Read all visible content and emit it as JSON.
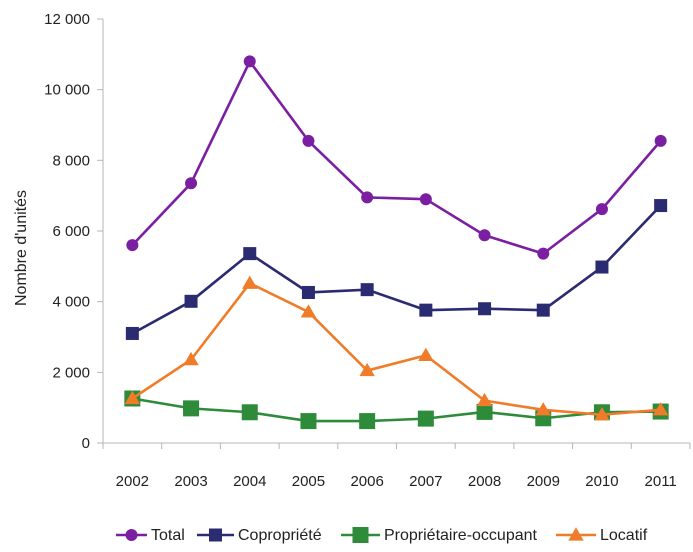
{
  "chart_data": {
    "type": "line",
    "title": "",
    "xlabel": "",
    "ylabel": "Nombre d'unités",
    "ylim": [
      0,
      12000
    ],
    "y_ticks": [
      0,
      2000,
      4000,
      6000,
      8000,
      10000,
      12000
    ],
    "y_tick_labels": [
      "0",
      "2 000",
      "4 000",
      "6 000",
      "8 000",
      "10 000",
      "12 000"
    ],
    "categories": [
      "2002",
      "2003",
      "2004",
      "2005",
      "2006",
      "2007",
      "2008",
      "2009",
      "2010",
      "2011"
    ],
    "grid": false,
    "legend_position": "bottom",
    "series": [
      {
        "name": "Total",
        "color": "#7b1fa2",
        "marker": "circle",
        "values": [
          5600,
          7350,
          10800,
          8550,
          6950,
          6900,
          5880,
          5360,
          6620,
          8550
        ]
      },
      {
        "name": "Copropriété",
        "color": "#2b2b72",
        "marker": "square",
        "values": [
          3100,
          4010,
          5360,
          4260,
          4340,
          3760,
          3800,
          3760,
          4980,
          6720
        ]
      },
      {
        "name": "Propriétaire-occupant",
        "color": "#2e8b3a",
        "marker": "square",
        "values": [
          1260,
          980,
          870,
          620,
          620,
          690,
          880,
          700,
          870,
          890
        ]
      },
      {
        "name": "Locatif",
        "color": "#f07c2a",
        "marker": "triangle",
        "values": [
          1260,
          2360,
          4520,
          3710,
          2050,
          2480,
          1200,
          940,
          800,
          940
        ]
      }
    ]
  }
}
